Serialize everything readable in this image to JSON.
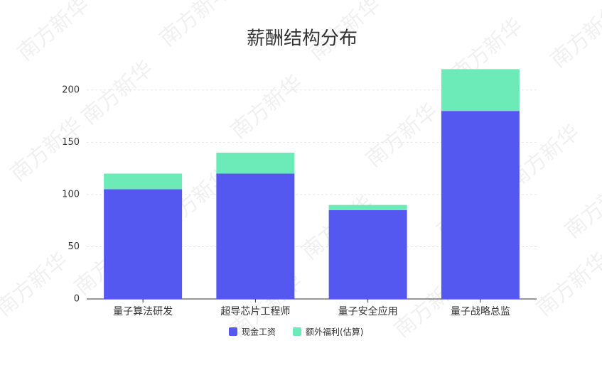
{
  "chart_data": {
    "type": "stacked_bar",
    "title": "薪酬结构分布",
    "watermark": "南方新华",
    "categories": [
      "量子算法研发",
      "超导芯片工程师",
      "量子安全应用",
      "量子战略总监"
    ],
    "series": [
      {
        "name": "现金工资",
        "color": "#5457f0",
        "values": [
          105,
          120,
          85,
          180
        ]
      },
      {
        "name": "额外福利(估算)",
        "color": "#6ceab7",
        "values": [
          15,
          20,
          5,
          40
        ]
      }
    ],
    "ylim": [
      0,
      225
    ],
    "yticks": [
      0,
      50,
      100,
      150,
      200
    ],
    "grid": true,
    "legend": "bottom"
  }
}
